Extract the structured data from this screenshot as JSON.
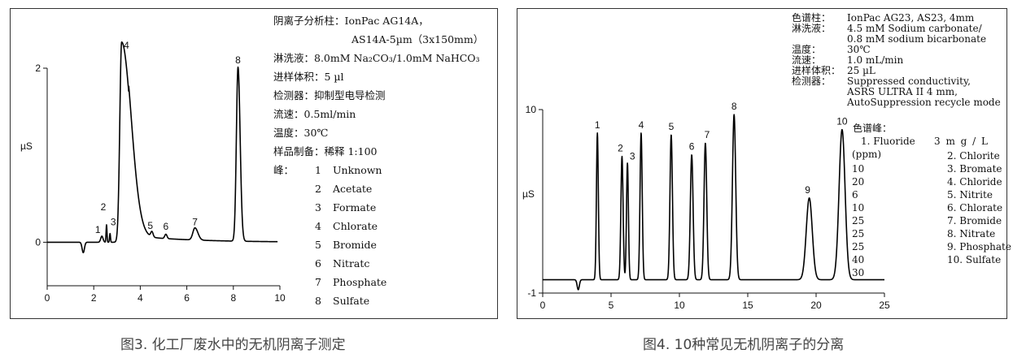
{
  "figure3": {
    "caption": "图3. 化工厂废水中的无机阴离子测定",
    "info": {
      "column_label": "阴离子分析柱：",
      "column_value_1": "IonPac AG14A，",
      "column_value_2": "AS14A-5µm（3x150mm）",
      "eluent": "淋洗液：8.0mM Na₂CO₃/1.0mM NaHCO₃",
      "injection": "进样体积：5 µl",
      "detector": "检测器：抑制型电导检测",
      "flow": "流速：0.5ml/min",
      "temperature": "温度：30℃",
      "sample_prep": "样品制备：稀释 1:100",
      "peaks_label": "峰："
    },
    "peaks": [
      {
        "num": "1",
        "name": "Unknown"
      },
      {
        "num": "2",
        "name": "Acetate"
      },
      {
        "num": "3",
        "name": "Formate"
      },
      {
        "num": "4",
        "name": "Chlorate"
      },
      {
        "num": "5",
        "name": "Bromide"
      },
      {
        "num": "6",
        "name": "Nitratc"
      },
      {
        "num": "7",
        "name": "Phosphate"
      },
      {
        "num": "8",
        "name": "Sulfate"
      }
    ]
  },
  "figure4": {
    "caption": "图4. 10种常见无机阴离子的分离",
    "info": [
      {
        "label": "色谱柱：",
        "value": "IonPac AG23, AS23, 4mm"
      },
      {
        "label": "淋洗液：",
        "value": "4.5 mM Sodium carbonate/"
      },
      {
        "label": "",
        "value": "0.8 mM sodium bicarbonate"
      },
      {
        "label": "温度：",
        "value": "30℃"
      },
      {
        "label": "流速：",
        "value": "1.0 mL/min"
      },
      {
        "label": "进样体积：",
        "value": "25 µL"
      },
      {
        "label": "检测器：",
        "value": "Suppressed conductivity,"
      },
      {
        "label": "",
        "value": "ASRS ULTRA II 4 mm,"
      },
      {
        "label": "",
        "value": "AutoSuppression recycle mode"
      }
    ],
    "peaks_title": "色谱峰：",
    "legend_first": "1. Fluoride",
    "legend_unit_spaced": "3 m g / L",
    "conc_header": "(ppm)",
    "concentrations": [
      "10",
      "20",
      "6",
      "10",
      "25",
      "25",
      "25",
      "40",
      "30"
    ],
    "legend_items": [
      "2. Chlorite",
      "3. Bromate",
      "4. Chloride",
      "5. Nitrite",
      "6. Chlorate",
      "7. Bromide",
      "8. Nitrate",
      "9. Phosphate",
      "10. Sulfate"
    ]
  },
  "chart_data": [
    {
      "type": "line",
      "title": "",
      "xlabel": "",
      "ylabel": "µS",
      "xlim": [
        0,
        10
      ],
      "ylim": [
        -0.5,
        2
      ],
      "x_ticks": [
        "0",
        "2",
        "4",
        "6",
        "8",
        "10"
      ],
      "y_ticks": [
        "0",
        "2"
      ],
      "baseline": 0.0,
      "peaks": [
        {
          "label": "1",
          "x": 2.35,
          "height": 0.07
        },
        {
          "label": "2",
          "x": 2.55,
          "height": 0.2
        },
        {
          "label": "3",
          "x": 2.7,
          "height": 0.1
        },
        {
          "label": "4",
          "x": 3.2,
          "height": 2.3
        },
        {
          "label": "5",
          "x": 4.5,
          "height": 0.06
        },
        {
          "label": "6",
          "x": 5.1,
          "height": 0.05
        },
        {
          "label": "7",
          "x": 6.35,
          "height": 0.14
        },
        {
          "label": "8",
          "x": 8.2,
          "height": 2.0
        }
      ]
    },
    {
      "type": "line",
      "title": "",
      "xlabel": "",
      "ylabel": "µS",
      "xlim": [
        0,
        25
      ],
      "ylim": [
        -1,
        10
      ],
      "x_ticks": [
        "0",
        "5",
        "10",
        "15",
        "20",
        "25"
      ],
      "y_ticks": [
        "-1",
        "10"
      ],
      "baseline": -0.2,
      "peaks": [
        {
          "label": "1",
          "x": 4.0,
          "height": 8.8
        },
        {
          "label": "2",
          "x": 5.8,
          "height": 7.4
        },
        {
          "label": "3",
          "x": 6.2,
          "height": 7.0
        },
        {
          "label": "4",
          "x": 7.2,
          "height": 8.8
        },
        {
          "label": "5",
          "x": 9.4,
          "height": 8.7
        },
        {
          "label": "6",
          "x": 10.9,
          "height": 7.5
        },
        {
          "label": "7",
          "x": 11.9,
          "height": 8.2
        },
        {
          "label": "8",
          "x": 14.0,
          "height": 9.9
        },
        {
          "label": "9",
          "x": 19.5,
          "height": 4.9
        },
        {
          "label": "10",
          "x": 21.9,
          "height": 9.0
        }
      ]
    }
  ]
}
